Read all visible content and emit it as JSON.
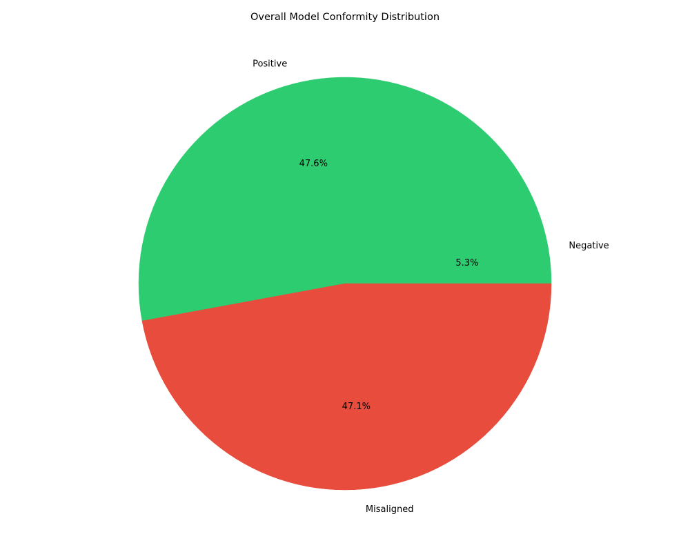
{
  "chart_data": {
    "type": "pie",
    "title": "Overall Model Conformity Distribution",
    "slices": [
      {
        "label": "Negative",
        "value": 5.3,
        "pct_label": "5.3%",
        "color": "#2ecc71"
      },
      {
        "label": "Positive",
        "value": 47.6,
        "pct_label": "47.6%",
        "color": "#2ecc71"
      },
      {
        "label": "Misaligned",
        "value": 47.1,
        "pct_label": "47.1%",
        "color": "#e74c3c"
      }
    ],
    "start_angle_deg": 0,
    "direction": "counterclockwise"
  }
}
